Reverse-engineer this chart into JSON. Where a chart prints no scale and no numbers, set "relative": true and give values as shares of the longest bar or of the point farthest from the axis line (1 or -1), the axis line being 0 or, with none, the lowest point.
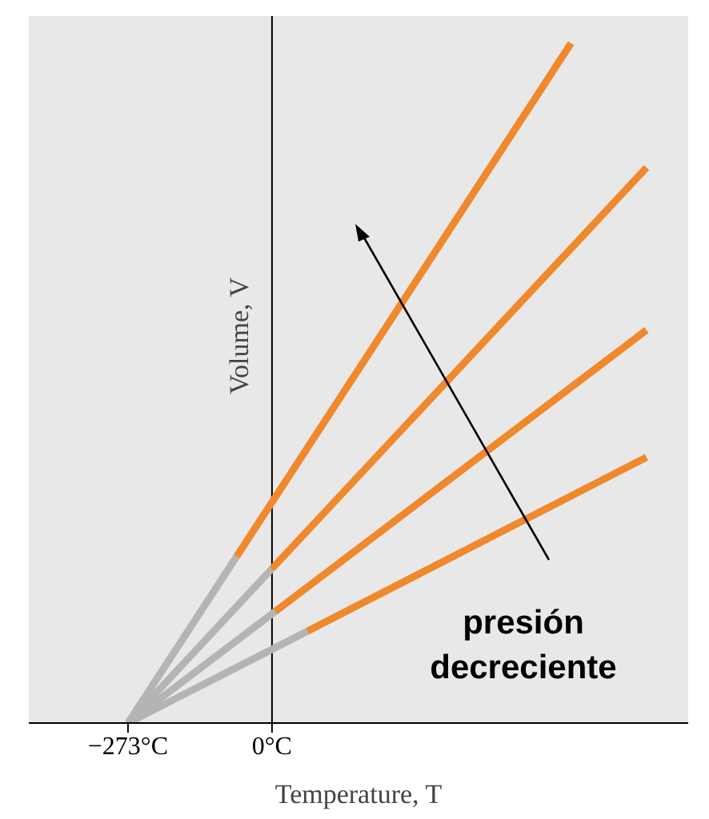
{
  "chart_data": {
    "type": "line",
    "relative": true,
    "xlabel": "Temperature, T",
    "ylabel": "Volume, V",
    "marker": "none",
    "line_style": "solid",
    "grid": false,
    "xlim": [
      -461,
      789
    ],
    "xticks": [
      {
        "value": -273,
        "label": "−273°C"
      },
      {
        "value": 0,
        "label": "0°C"
      }
    ],
    "ref_lines": [
      {
        "axis": "x",
        "value": 0,
        "color": "#000000"
      }
    ],
    "annotations": [
      "presión decreciente"
    ],
    "series": [
      {
        "color": "#b4b4b4",
        "x": [
          -273,
          -67
        ],
        "values": [
          0,
          0.245
        ]
      },
      {
        "color": "#f0882c",
        "x": [
          -67,
          567
        ],
        "values": [
          0.245,
          1
        ]
      },
      {
        "color": "#b4b4b4",
        "x": [
          -273,
          0
        ],
        "values": [
          0,
          0.227
        ]
      },
      {
        "color": "#f0882c",
        "x": [
          0,
          710
        ],
        "values": [
          0.227,
          0.817
        ]
      },
      {
        "color": "#b4b4b4",
        "x": [
          -273,
          6
        ],
        "values": [
          0,
          0.164
        ]
      },
      {
        "color": "#f0882c",
        "x": [
          6,
          710
        ],
        "values": [
          0.164,
          0.578
        ]
      },
      {
        "color": "#b4b4b4",
        "x": [
          -273,
          67
        ],
        "values": [
          0,
          0.135
        ]
      },
      {
        "color": "#f0882c",
        "x": [
          67,
          710
        ],
        "values": [
          0.135,
          0.391
        ]
      }
    ]
  }
}
